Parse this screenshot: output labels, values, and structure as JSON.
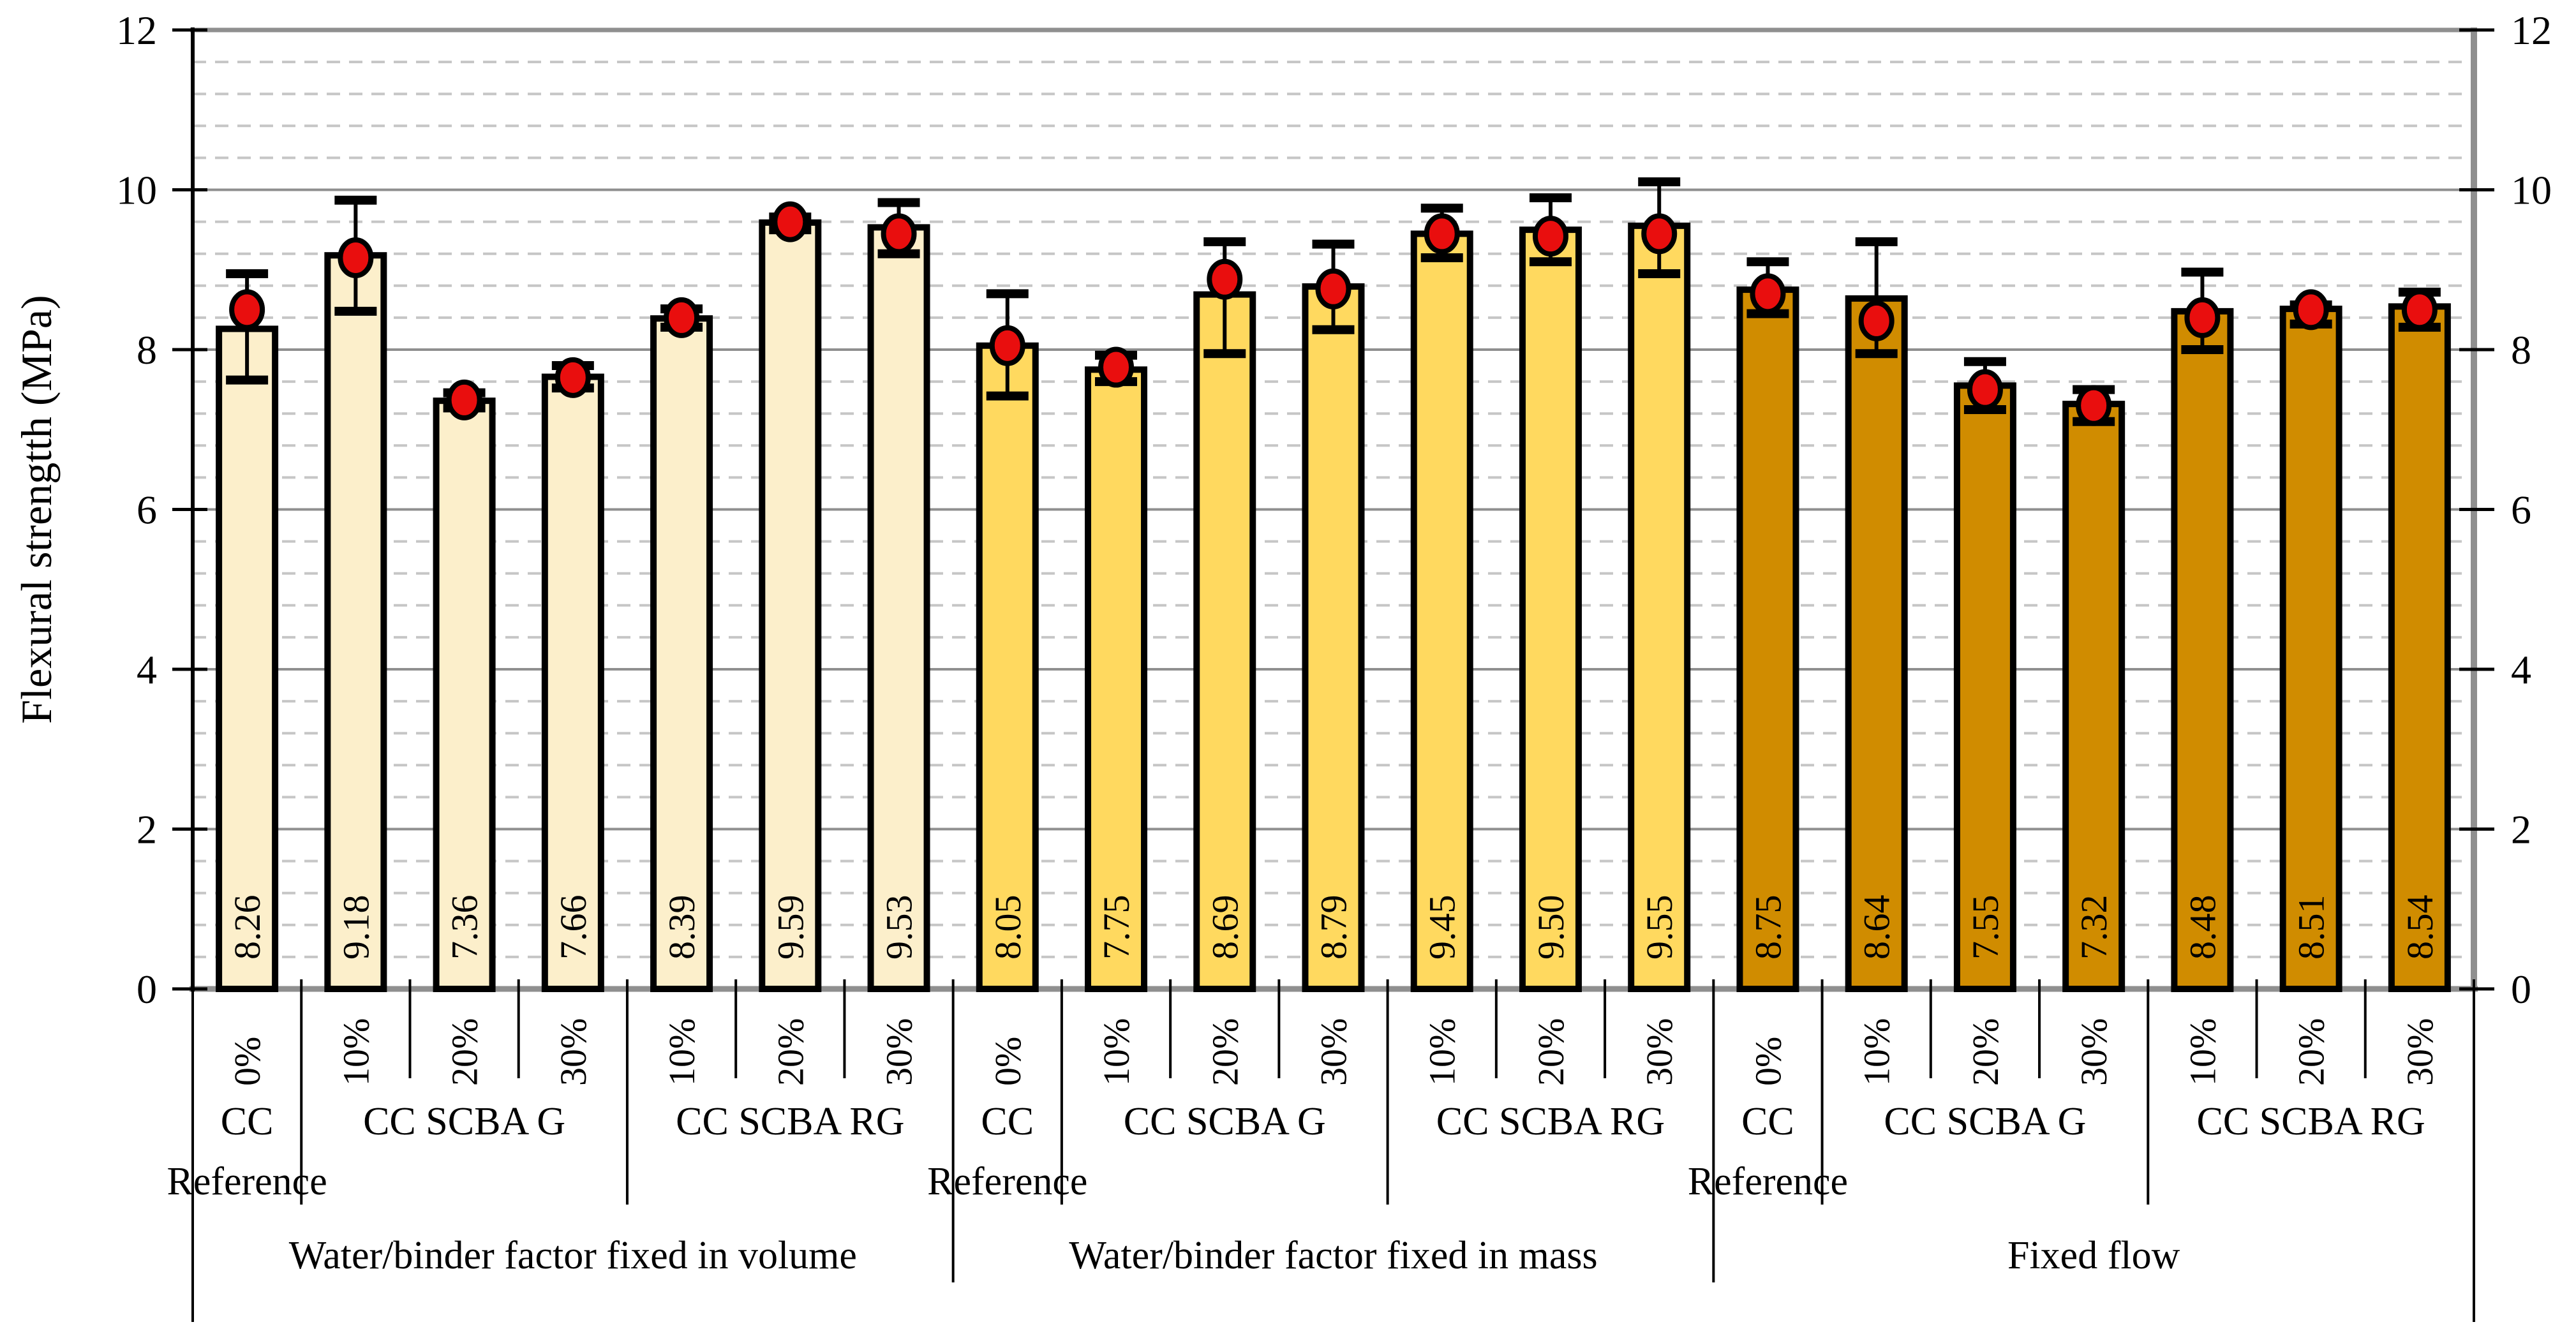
{
  "figure": {
    "background": "#FFFFFF"
  },
  "chart_data": {
    "type": "bar",
    "title": "",
    "ylabel": "Flexural strengtth (MPa)",
    "xlabel": "",
    "ylim": [
      0,
      12
    ],
    "y_major_step": 2,
    "y_minor_step": 0.4,
    "y_ticks": [
      "0",
      "2",
      "4",
      "6",
      "8",
      "10",
      "12"
    ],
    "dual_value_axis": true,
    "grid": {
      "major": "solid",
      "minor": "dashed"
    },
    "legend_position": "none",
    "colors": {
      "marker_fill": "#E90E0E",
      "marker_stroke": "#000000",
      "bar_stroke": "#000000",
      "major_grid": "#8F8F8F",
      "minor_grid": "#C6C6C6",
      "axis_gray": "#8F8F8F",
      "axis_black": "#000000",
      "separator": "#000000"
    },
    "groups": [
      {
        "label": "Water/binder factor fixed in volume",
        "fill": "#FCEFCB",
        "subgroups": [
          {
            "label": "CC",
            "footnote": "Reference",
            "bars": [
              {
                "tick": "0%",
                "value": 8.26,
                "mean": 8.5,
                "err_hi": 8.95,
                "err_lo": 7.62
              }
            ]
          },
          {
            "label": "CC SCBA G",
            "footnote": "",
            "bars": [
              {
                "tick": "10%",
                "value": 9.18,
                "mean": 9.15,
                "err_hi": 9.87,
                "err_lo": 8.48
              },
              {
                "tick": "20%",
                "value": 7.36,
                "mean": 7.37,
                "err_hi": 7.46,
                "err_lo": 7.27
              },
              {
                "tick": "30%",
                "value": 7.66,
                "mean": 7.65,
                "err_hi": 7.8,
                "err_lo": 7.52
              }
            ]
          },
          {
            "label": "CC SCBA RG",
            "footnote": "",
            "bars": [
              {
                "tick": "10%",
                "value": 8.39,
                "mean": 8.4,
                "err_hi": 8.51,
                "err_lo": 8.28
              },
              {
                "tick": "20%",
                "value": 9.59,
                "mean": 9.6,
                "err_hi": 9.66,
                "err_lo": 9.5
              },
              {
                "tick": "30%",
                "value": 9.53,
                "mean": 9.45,
                "err_hi": 9.84,
                "err_lo": 9.2
              }
            ]
          }
        ]
      },
      {
        "label": "Water/binder factor fixed in mass",
        "fill": "#FFD95F",
        "subgroups": [
          {
            "label": "CC",
            "footnote": "Reference",
            "bars": [
              {
                "tick": "0%",
                "value": 8.05,
                "mean": 8.05,
                "err_hi": 8.7,
                "err_lo": 7.42
              }
            ]
          },
          {
            "label": "CC SCBA G",
            "footnote": "",
            "bars": [
              {
                "tick": "10%",
                "value": 7.75,
                "mean": 7.78,
                "err_hi": 7.93,
                "err_lo": 7.6
              },
              {
                "tick": "20%",
                "value": 8.69,
                "mean": 8.88,
                "err_hi": 9.35,
                "err_lo": 7.95
              },
              {
                "tick": "30%",
                "value": 8.79,
                "mean": 8.76,
                "err_hi": 9.32,
                "err_lo": 8.25
              }
            ]
          },
          {
            "label": "CC SCBA RG",
            "footnote": "",
            "bars": [
              {
                "tick": "10%",
                "value": 9.45,
                "mean": 9.45,
                "err_hi": 9.77,
                "err_lo": 9.15
              },
              {
                "tick": "20%",
                "value": 9.5,
                "mean": 9.42,
                "err_hi": 9.9,
                "err_lo": 9.1
              },
              {
                "tick": "30%",
                "value": 9.55,
                "mean": 9.45,
                "err_hi": 10.1,
                "err_lo": 8.95
              }
            ]
          }
        ]
      },
      {
        "label": "Fixed flow",
        "fill": "#D08C00",
        "subgroups": [
          {
            "label": "CC",
            "footnote": "Reference",
            "bars": [
              {
                "tick": "0%",
                "value": 8.75,
                "mean": 8.7,
                "err_hi": 9.1,
                "err_lo": 8.45
              }
            ]
          },
          {
            "label": "CC SCBA G",
            "footnote": "",
            "bars": [
              {
                "tick": "10%",
                "value": 8.64,
                "mean": 8.36,
                "err_hi": 9.35,
                "err_lo": 7.95
              },
              {
                "tick": "20%",
                "value": 7.55,
                "mean": 7.5,
                "err_hi": 7.85,
                "err_lo": 7.25
              },
              {
                "tick": "30%",
                "value": 7.32,
                "mean": 7.3,
                "err_hi": 7.5,
                "err_lo": 7.1
              }
            ]
          },
          {
            "label": "CC SCBA RG",
            "footnote": "",
            "bars": [
              {
                "tick": "10%",
                "value": 8.48,
                "mean": 8.4,
                "err_hi": 8.97,
                "err_lo": 8.0
              },
              {
                "tick": "20%",
                "value": 8.51,
                "mean": 8.5,
                "err_hi": 8.56,
                "err_lo": 8.32
              },
              {
                "tick": "30%",
                "value": 8.54,
                "mean": 8.5,
                "err_hi": 8.72,
                "err_lo": 8.28
              }
            ]
          }
        ]
      }
    ]
  }
}
